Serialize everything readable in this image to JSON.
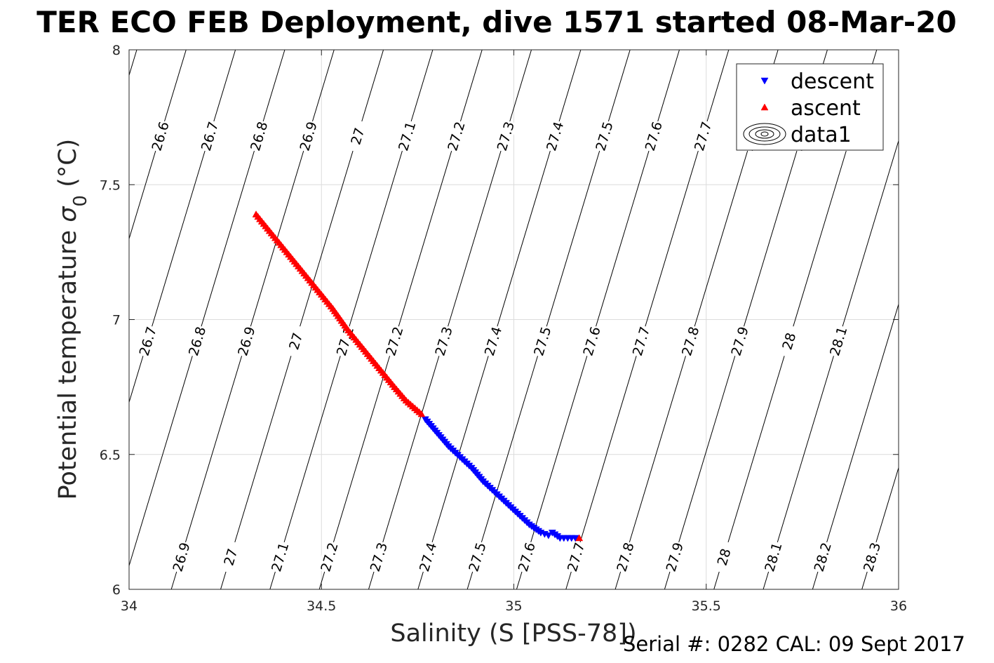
{
  "title": "TER ECO FEB Deployment, dive 1571 started 08-Mar-20",
  "footer_text": "Serial #: 0282  CAL: 09 Sept 2017",
  "chart_data": {
    "type": "scatter",
    "title": "TER ECO FEB Deployment, dive 1571 started 08-Mar-20",
    "xlabel": "Salinity (S [PSS-78])",
    "ylabel": "Potential temperature σ0 (°C)",
    "xlim": [
      34,
      36
    ],
    "ylim": [
      6,
      8
    ],
    "xticks": [
      "34",
      "34.5",
      "35",
      "35.5",
      "36"
    ],
    "yticks": [
      "6",
      "6.5",
      "7",
      "7.5",
      "8"
    ],
    "grid": true,
    "legend_position": "top-right",
    "legend": [
      "descent",
      "ascent",
      "data1"
    ],
    "series": [
      {
        "name": "descent",
        "marker": "triangle-down",
        "color": "#0000ff",
        "x": [
          34.77,
          34.8,
          34.83,
          34.86,
          34.89,
          34.92,
          34.95,
          34.98,
          35.01,
          35.04,
          35.07,
          35.09,
          35.1,
          35.12,
          35.14,
          35.16
        ],
        "y": [
          6.63,
          6.58,
          6.53,
          6.49,
          6.45,
          6.4,
          6.36,
          6.32,
          6.28,
          6.24,
          6.21,
          6.2,
          6.21,
          6.19,
          6.19,
          6.19
        ]
      },
      {
        "name": "ascent",
        "marker": "triangle-up",
        "color": "#ff0000",
        "x": [
          34.33,
          34.37,
          34.41,
          34.45,
          34.49,
          34.53,
          34.57,
          34.61,
          34.65,
          34.69,
          34.72,
          34.76,
          35.17
        ],
        "y": [
          7.39,
          7.32,
          7.25,
          7.18,
          7.11,
          7.04,
          6.96,
          6.89,
          6.82,
          6.75,
          6.7,
          6.65,
          6.19
        ]
      }
    ],
    "isopycnal_labels": [
      "26.6",
      "26.7",
      "26.8",
      "26.9",
      "27",
      "27.1",
      "27.2",
      "27.3",
      "27.4",
      "27.5",
      "27.6",
      "27.7",
      "27.8",
      "27.9",
      "28",
      "28.1",
      "28.2",
      "28.3"
    ]
  }
}
